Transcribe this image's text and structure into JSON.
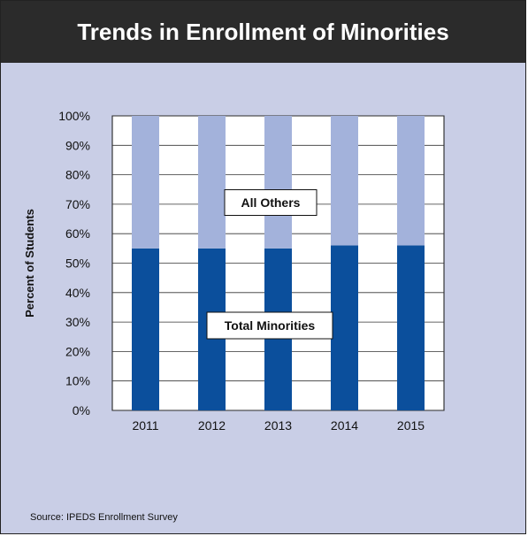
{
  "chart_data": {
    "type": "bar",
    "title": "Trends in Enrollment of Minorities",
    "ylabel": "Percent of Students",
    "xlabel": "",
    "categories": [
      "2011",
      "2012",
      "2013",
      "2014",
      "2015"
    ],
    "series": [
      {
        "name": "Total Minorities",
        "values": [
          55,
          55,
          55,
          56,
          56
        ],
        "color": "#0b4f9c"
      },
      {
        "name": "All Others",
        "values": [
          45,
          45,
          45,
          44,
          44
        ],
        "color": "#a3b2db"
      }
    ],
    "stacked": true,
    "ylim": [
      0,
      100
    ],
    "yticks": [
      "0%",
      "10%",
      "20%",
      "30%",
      "40%",
      "50%",
      "60%",
      "70%",
      "80%",
      "90%",
      "100%"
    ],
    "annotations": [
      "All Others",
      "Total Minorities"
    ],
    "grid": true
  },
  "source": "Source: IPEDS Enrollment Survey",
  "colors": {
    "header_bg": "#2b2b2b",
    "panel_bg": "#c9cee6",
    "plot_bg": "#ffffff"
  }
}
